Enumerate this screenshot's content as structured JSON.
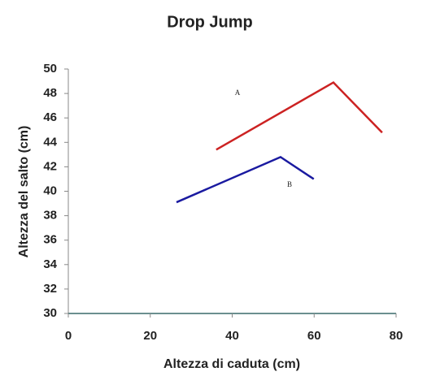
{
  "chart_data": {
    "type": "line",
    "title": "Drop Jump",
    "x_label": "Altezza di caduta (cm)",
    "y_label": "Altezza del salto (cm)",
    "series": [
      {
        "name": "A",
        "color": "#cc2222",
        "x": [
          36.1,
          64.7,
          76.6
        ],
        "values": [
          43.4,
          48.9,
          44.8
        ]
      },
      {
        "name": "B",
        "color": "#1a1aa0",
        "x": [
          26.4,
          51.8,
          59.9
        ],
        "values": [
          39.1,
          42.8,
          41.0
        ]
      }
    ],
    "xlim": [
      0,
      80
    ],
    "xticks": [
      0,
      20,
      40,
      60,
      80
    ],
    "ylim": [
      30,
      50
    ],
    "yticks": [
      30,
      32,
      34,
      36,
      38,
      40,
      42,
      44,
      46,
      48,
      50
    ],
    "grid": false
  }
}
